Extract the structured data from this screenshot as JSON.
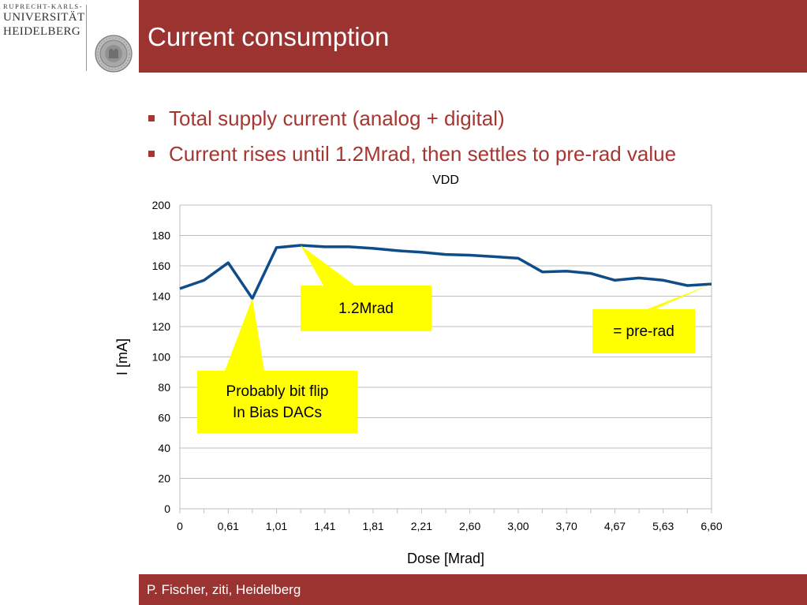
{
  "logo": {
    "line1": "RUPRECHT-KARLS-",
    "line2": "UNIVERSITÄT",
    "line3": "HEIDELBERG"
  },
  "slide": {
    "title": "Current consumption",
    "bullets": [
      "Total supply current (analog + digital)",
      "Current rises until 1.2Mrad, then settles to pre-rad value"
    ],
    "footer": "P. Fischer, ziti, Heidelberg"
  },
  "colors": {
    "brand": "#9b3430",
    "line": "#0f4c8a",
    "callout": "#ffff00"
  },
  "chart_data": {
    "type": "line",
    "title": "VDD",
    "xlabel": "Dose [Mrad]",
    "ylabel": "I [mA]",
    "ylim": [
      0,
      200
    ],
    "yticks": [
      0,
      20,
      40,
      60,
      80,
      100,
      120,
      140,
      160,
      180,
      200
    ],
    "categories": [
      "0",
      "",
      "0,61",
      "",
      "1,01",
      "",
      "1,41",
      "",
      "1,81",
      "",
      "2,21",
      "",
      "2,60",
      "",
      "3,00",
      "",
      "3,70",
      "",
      "4,67",
      "",
      "5,63",
      "",
      "6,60"
    ],
    "values": [
      145,
      150.5,
      162,
      138.5,
      172,
      173.5,
      172.5,
      172.5,
      171.5,
      170,
      169,
      167.5,
      167,
      166,
      165,
      156,
      156.5,
      155,
      150.5,
      152,
      150.5,
      147,
      148
    ],
    "grid": true,
    "legend": "none",
    "annotations": [
      {
        "text": [
          "1.2Mrad"
        ],
        "target_index": 5
      },
      {
        "text": [
          "= pre-rad"
        ],
        "target_index": 22
      },
      {
        "text": [
          "Probably bit flip",
          "In Bias DACs"
        ],
        "target_index": 3
      }
    ]
  }
}
